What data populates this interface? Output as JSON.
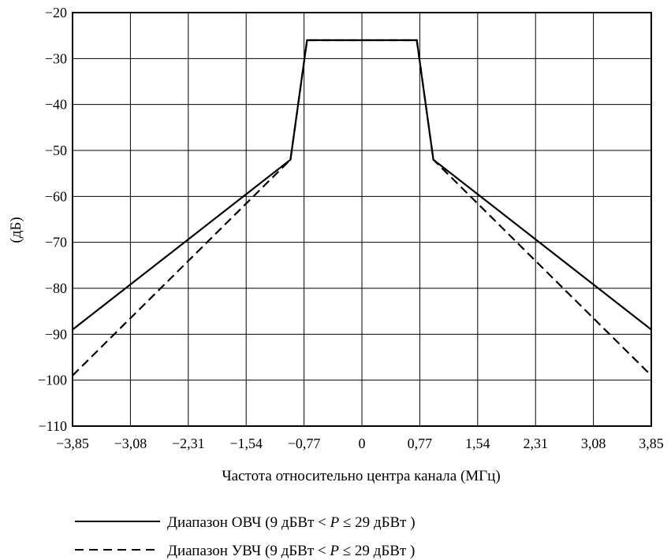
{
  "chart_data": {
    "type": "line",
    "xlabel": "Частота относительно центра канала (МГц)",
    "ylabel": "(дБ)",
    "xlim": [
      -3.85,
      3.85
    ],
    "ylim": [
      -110,
      -20
    ],
    "x_ticks": [
      -3.85,
      -3.08,
      -2.31,
      -1.54,
      -0.77,
      0,
      0.77,
      1.54,
      2.31,
      3.08,
      3.85
    ],
    "x_tick_labels": [
      "−3,85",
      "−3,08",
      "−2,31",
      "−1,54",
      "−0,77",
      "0",
      "0,77",
      "1,54",
      "2,31",
      "3,08",
      "3,85"
    ],
    "y_ticks": [
      -20,
      -30,
      -40,
      -50,
      -60,
      -70,
      -80,
      -90,
      -100,
      -110
    ],
    "y_tick_labels": [
      "−20",
      "−30",
      "−40",
      "−50",
      "−60",
      "−70",
      "−80",
      "−90",
      "−100",
      "−110"
    ],
    "grid": true,
    "legend_position": "bottom",
    "series": [
      {
        "name": "Диапазон ОВЧ (9 дБВт < P ≤ 29 дБВт )",
        "style": "solid",
        "color": "#000000",
        "x": [
          -3.85,
          -0.95,
          -0.73,
          0.73,
          0.95,
          3.85
        ],
        "y": [
          -89,
          -52,
          -26,
          -26,
          -52,
          -89
        ]
      },
      {
        "name": "Диапазон УВЧ (9 дБВт < P ≤ 29 дБВт )",
        "style": "dashed",
        "color": "#000000",
        "x": [
          -3.85,
          -0.95,
          -0.73,
          0.73,
          0.95,
          3.85
        ],
        "y": [
          -99,
          -52,
          -26,
          -26,
          -52,
          -99
        ]
      }
    ]
  },
  "legend": {
    "vhf": {
      "prefix": "Диапазон ОВЧ (9 дБВт < ",
      "var": "P",
      "suffix": " ≤ 29 дБВт )"
    },
    "uhf": {
      "prefix": "Диапазон УВЧ (9 дБВт < ",
      "var": "P",
      "suffix": " ≤ 29 дБВт )"
    }
  }
}
